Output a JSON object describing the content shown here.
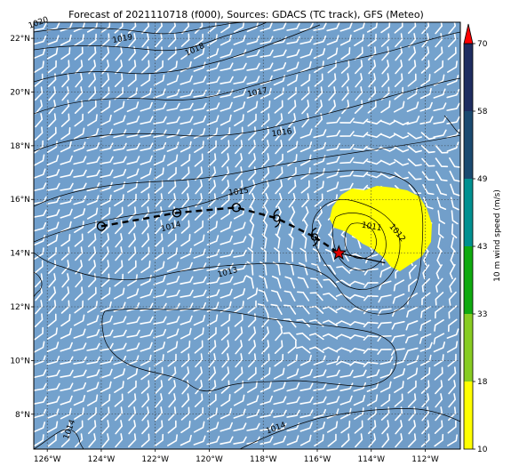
{
  "title": "Forecast of 2021110718 (f000), Sources: GDACS (TC track), GFS (Meteo)",
  "map": {
    "lon_range": [
      -126.5,
      -110.7
    ],
    "lat_range": [
      6.7,
      22.6
    ],
    "lon_ticks": [
      -126,
      -124,
      -122,
      -120,
      -118,
      -116,
      -114,
      -112
    ],
    "lat_ticks": [
      8,
      10,
      12,
      14,
      16,
      18,
      20,
      22
    ],
    "lon_tick_labels": [
      "126°W",
      "124°W",
      "122°W",
      "120°W",
      "118°W",
      "116°W",
      "114°W",
      "112°W"
    ],
    "lat_tick_labels": [
      "8°N",
      "10°N",
      "12°N",
      "14°N",
      "16°N",
      "18°N",
      "20°N",
      "22°N"
    ],
    "gridlines": "dotted",
    "ocean_color": "#6f9ec9"
  },
  "isobar_labels": [
    {
      "text": "1020",
      "lon": -126.3,
      "lat": 22.5
    },
    {
      "text": "1019",
      "lon": -123.2,
      "lat": 21.9
    },
    {
      "text": "1018",
      "lon": -120.5,
      "lat": 21.5
    },
    {
      "text": "1017",
      "lon": -118.2,
      "lat": 19.9
    },
    {
      "text": "1016",
      "lon": -117.3,
      "lat": 18.4
    },
    {
      "text": "1015",
      "lon": -118.9,
      "lat": 16.2
    },
    {
      "text": "1014",
      "lon": -121.4,
      "lat": 14.9
    },
    {
      "text": "1013",
      "lon": -119.3,
      "lat": 13.2
    },
    {
      "text": "1012",
      "lon": -113.1,
      "lat": 14.7
    },
    {
      "text": "1011",
      "lon": -114.0,
      "lat": 14.9
    },
    {
      "text": "1014",
      "lon": -117.5,
      "lat": 7.4
    },
    {
      "text": "1014",
      "lon": -125.1,
      "lat": 7.4
    }
  ],
  "tc_track": {
    "points": [
      {
        "lon": -124.0,
        "lat": 15.0,
        "symbol": "open-circle"
      },
      {
        "lon": -121.2,
        "lat": 15.5,
        "symbol": "open-circle"
      },
      {
        "lon": -119.0,
        "lat": 15.7,
        "symbol": "open-circle"
      },
      {
        "lon": -117.5,
        "lat": 15.3,
        "symbol": "tropical-storm"
      },
      {
        "lon": -116.1,
        "lat": 14.6,
        "symbol": "tropical-storm"
      },
      {
        "lon": -115.2,
        "lat": 14.0,
        "symbol": "current-position-star"
      }
    ],
    "star_color": "#e00000"
  },
  "colorbar": {
    "label": "10 m wind speed (m/s)",
    "ticks": [
      "10",
      "18",
      "33",
      "43",
      "49",
      "58",
      "70"
    ],
    "tick_values": [
      10,
      18,
      33,
      43,
      49,
      58,
      70
    ],
    "segment_colors": [
      "#ffff00",
      "#88cc22",
      "#10aa10",
      "#009090",
      "#1a4a70",
      "#1e2d60"
    ],
    "extend_color": "#ff0000"
  }
}
